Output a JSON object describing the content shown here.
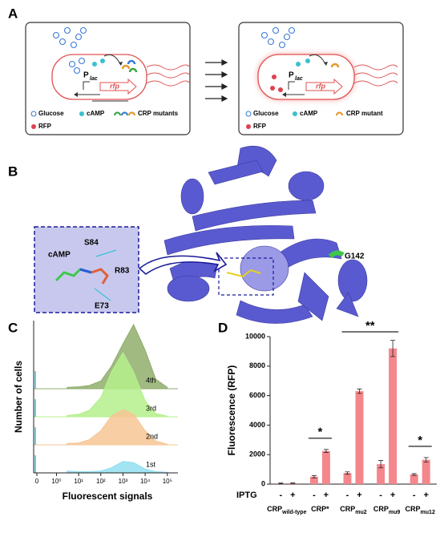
{
  "figure": {
    "panel_labels": [
      "A",
      "B",
      "C",
      "D"
    ],
    "panel_a": {
      "left": {
        "promoter": "P",
        "promoter_sub": "lac",
        "gene": "rfp",
        "legend": [
          "Glucose",
          "cAMP",
          "CRP mutants",
          "RFP"
        ]
      },
      "right": {
        "promoter": "P",
        "promoter_sub": "lac",
        "gene": "rfp",
        "legend": [
          "Glucose",
          "cAMP",
          "CRP mutant",
          "RFP"
        ]
      }
    },
    "panel_b": {
      "ligand": "cAMP",
      "residues": [
        "S84",
        "R83",
        "E73"
      ],
      "mutation": "G142"
    }
  },
  "chart_data": [
    {
      "type": "ridgeline",
      "ylabel": "Number of cells",
      "xlabel": "Fluorescent signals",
      "xscale": "log",
      "x": [
        3,
        10,
        30,
        100,
        300,
        1000,
        3000,
        10000,
        30000,
        100000
      ],
      "xlim": [
        0.3,
        300000
      ],
      "ylim": [
        0,
        100
      ],
      "xticks": [
        0,
        {
          "value": 1,
          "label": "10⁰"
        },
        {
          "value": 10,
          "label": "10¹"
        },
        {
          "value": 100,
          "label": "10²"
        },
        {
          "value": 1000,
          "label": "10³"
        },
        {
          "value": 10000,
          "label": "10⁴"
        },
        {
          "value": 100000,
          "label": "10⁵"
        }
      ],
      "series": [
        {
          "name": "4th",
          "color": "#8fae6c",
          "values": [
            2,
            3,
            5,
            12,
            35,
            70,
            100,
            60,
            15,
            2
          ]
        },
        {
          "name": "3rd",
          "color": "#b5ef8c",
          "values": [
            2,
            4,
            10,
            30,
            70,
            100,
            70,
            25,
            5,
            1
          ]
        },
        {
          "name": "2nd",
          "color": "#f7c594",
          "values": [
            2,
            3,
            8,
            22,
            45,
            55,
            48,
            22,
            6,
            1
          ]
        },
        {
          "name": "1st",
          "color": "#93dff0",
          "values": [
            3,
            2,
            2,
            3,
            8,
            18,
            16,
            6,
            2,
            1
          ]
        }
      ]
    },
    {
      "type": "bar",
      "ylabel": "Fluorescence (RFP)",
      "ylim": [
        0,
        10000
      ],
      "yticks": [
        0,
        2000,
        4000,
        6000,
        8000,
        10000
      ],
      "x_row_label": "IPTG",
      "color": "#f4878c",
      "categories": [
        "-",
        "+",
        "-",
        "+",
        "-",
        "+",
        "-",
        "+",
        "-",
        "+"
      ],
      "groups": [
        {
          "name": "CRP",
          "sub": "wild-type"
        },
        {
          "name": "CRP*"
        },
        {
          "name": "CRP",
          "sub": "mu2"
        },
        {
          "name": "CRP",
          "sub": "mu9"
        },
        {
          "name": "CRP",
          "sub": "mu12"
        }
      ],
      "values": [
        50,
        60,
        500,
        2250,
        750,
        6300,
        1350,
        9200,
        650,
        1650
      ],
      "errors": [
        20,
        20,
        80,
        100,
        80,
        150,
        250,
        550,
        60,
        150
      ],
      "annotations": [
        {
          "text": "*",
          "from": 2,
          "to": 3
        },
        {
          "text": "**",
          "from": 4,
          "to": 7
        },
        {
          "text": "*",
          "from": 8,
          "to": 9
        }
      ]
    }
  ]
}
